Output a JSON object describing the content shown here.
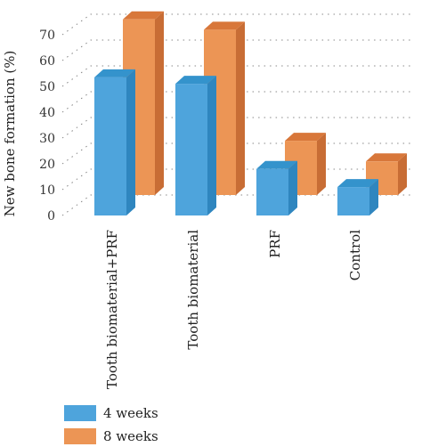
{
  "chart_data": {
    "type": "bar",
    "ylabel": "New bone formation (%)",
    "ylim": [
      0,
      70
    ],
    "yticks": [
      0,
      10,
      20,
      30,
      40,
      50,
      60,
      70
    ],
    "categories": [
      "Tooth biomaterial+PRF",
      "Tooth biomaterial",
      "PRF",
      "Control"
    ],
    "series": [
      {
        "name": "4 weeks",
        "values": [
          53.5,
          51,
          18,
          11
        ]
      },
      {
        "name": "8 weeks",
        "values": [
          68,
          64,
          21,
          13
        ]
      }
    ],
    "grid": true,
    "legend_position": "bottom-left",
    "colors": {
      "4 weeks": {
        "front": "#4ea4dc",
        "top": "#3493cc",
        "side": "#2f86bf"
      },
      "8 weeks": {
        "front": "#ec9555",
        "top": "#d8773a",
        "side": "#c86d35"
      }
    }
  }
}
